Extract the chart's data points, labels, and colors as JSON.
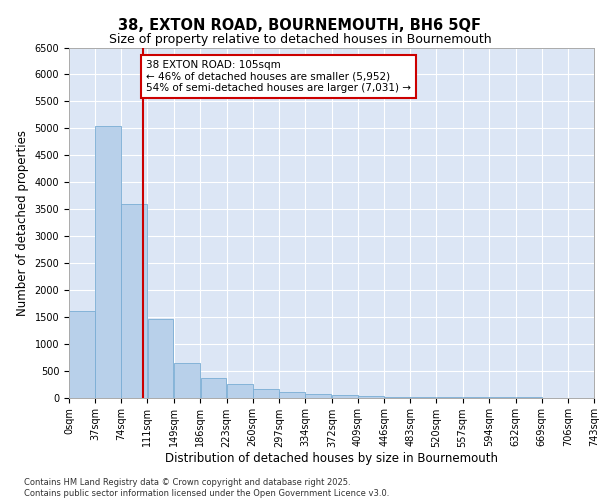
{
  "title_line1": "38, EXTON ROAD, BOURNEMOUTH, BH6 5QF",
  "title_line2": "Size of property relative to detached houses in Bournemouth",
  "xlabel": "Distribution of detached houses by size in Bournemouth",
  "ylabel": "Number of detached properties",
  "bar_color": "#b8d0ea",
  "bar_edge_color": "#7aadd4",
  "background_color": "#dce6f5",
  "annotation_text": "38 EXTON ROAD: 105sqm\n← 46% of detached houses are smaller (5,952)\n54% of semi-detached houses are larger (7,031) →",
  "vline_x": 105,
  "vline_color": "#cc0000",
  "bins_left": [
    0,
    37,
    74,
    111,
    149,
    186,
    223,
    260,
    297,
    334,
    372,
    409,
    446,
    483,
    520,
    557,
    594,
    632,
    669,
    706
  ],
  "bin_width": 37,
  "bar_heights": [
    1600,
    5050,
    3600,
    1450,
    650,
    370,
    250,
    160,
    110,
    65,
    45,
    25,
    18,
    8,
    4,
    2,
    1,
    1,
    0,
    0
  ],
  "ylim": [
    0,
    6500
  ],
  "yticks": [
    0,
    500,
    1000,
    1500,
    2000,
    2500,
    3000,
    3500,
    4000,
    4500,
    5000,
    5500,
    6000,
    6500
  ],
  "tick_labels_x": [
    "0sqm",
    "37sqm",
    "74sqm",
    "111sqm",
    "149sqm",
    "186sqm",
    "223sqm",
    "260sqm",
    "297sqm",
    "334sqm",
    "372sqm",
    "409sqm",
    "446sqm",
    "483sqm",
    "520sqm",
    "557sqm",
    "594sqm",
    "632sqm",
    "669sqm",
    "706sqm",
    "743sqm"
  ],
  "footnote": "Contains HM Land Registry data © Crown copyright and database right 2025.\nContains public sector information licensed under the Open Government Licence v3.0.",
  "title_fontsize": 10.5,
  "subtitle_fontsize": 9,
  "axis_label_fontsize": 8.5,
  "tick_label_fontsize": 7,
  "annotation_fontsize": 7.5
}
